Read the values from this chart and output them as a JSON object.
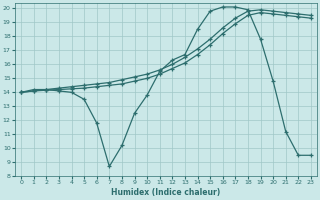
{
  "xlabel": "Humidex (Indice chaleur)",
  "bg_color": "#cbe8e8",
  "grid_color": "#a0c8c8",
  "line_color": "#2d6e6e",
  "xlim": [
    -0.5,
    23.5
  ],
  "ylim": [
    8,
    20.4
  ],
  "xticks": [
    0,
    1,
    2,
    3,
    4,
    5,
    6,
    7,
    8,
    9,
    10,
    11,
    12,
    13,
    14,
    15,
    16,
    17,
    18,
    19,
    20,
    21,
    22,
    23
  ],
  "yticks": [
    8,
    9,
    10,
    11,
    12,
    13,
    14,
    15,
    16,
    17,
    18,
    19,
    20
  ],
  "line1_x": [
    0,
    1,
    2,
    3,
    4,
    5,
    6,
    7,
    8,
    9,
    10,
    11,
    12,
    13,
    14,
    15,
    16,
    17,
    18,
    19,
    20,
    21,
    22,
    23
  ],
  "line1_y": [
    14.0,
    14.2,
    14.2,
    14.1,
    14.0,
    13.5,
    11.8,
    8.7,
    10.2,
    12.5,
    13.8,
    15.5,
    16.3,
    16.7,
    18.5,
    19.8,
    20.1,
    20.1,
    19.9,
    17.8,
    14.8,
    11.2,
    9.5,
    9.5
  ],
  "line2_x": [
    0,
    1,
    2,
    3,
    4,
    5,
    6,
    7,
    8,
    9,
    10,
    11,
    12,
    13,
    14,
    15,
    16,
    17,
    18,
    19,
    20,
    21,
    22,
    23
  ],
  "line2_y": [
    14.0,
    14.1,
    14.2,
    14.3,
    14.4,
    14.5,
    14.6,
    14.7,
    14.9,
    15.1,
    15.3,
    15.6,
    16.0,
    16.5,
    17.1,
    17.8,
    18.6,
    19.3,
    19.8,
    19.9,
    19.8,
    19.7,
    19.6,
    19.5
  ],
  "line3_x": [
    0,
    1,
    2,
    3,
    4,
    5,
    6,
    7,
    8,
    9,
    10,
    11,
    12,
    13,
    14,
    15,
    16,
    17,
    18,
    19,
    20,
    21,
    22,
    23
  ],
  "line3_y": [
    14.0,
    14.1,
    14.15,
    14.2,
    14.25,
    14.3,
    14.4,
    14.5,
    14.6,
    14.8,
    15.0,
    15.3,
    15.7,
    16.1,
    16.7,
    17.4,
    18.2,
    18.9,
    19.5,
    19.7,
    19.6,
    19.5,
    19.4,
    19.3
  ]
}
